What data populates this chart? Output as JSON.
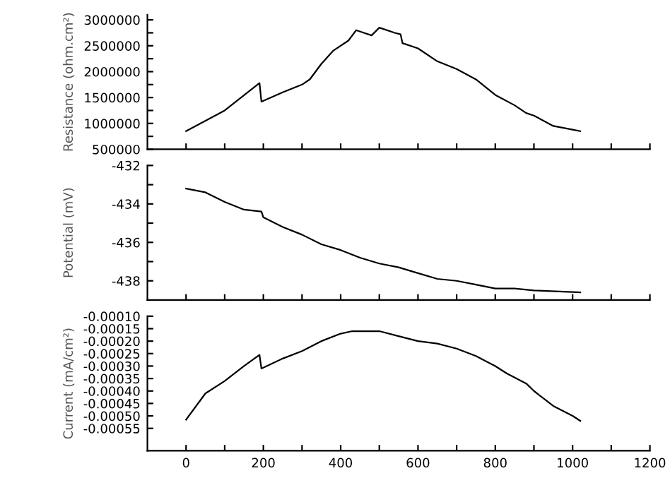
{
  "chart_data": [
    {
      "type": "line",
      "ylabel": "Resistance (ohm.cm²)",
      "tick_labels": "y",
      "grid": false,
      "legend": false,
      "x": [
        0,
        100,
        190,
        195,
        250,
        300,
        320,
        350,
        380,
        420,
        440,
        460,
        480,
        500,
        540,
        555,
        560,
        600,
        650,
        700,
        750,
        800,
        850,
        880,
        900,
        950,
        1000,
        1020
      ],
      "series": [
        {
          "color": "#000000",
          "values": [
            850000,
            1250000,
            1780000,
            1420000,
            1600000,
            1750000,
            1850000,
            2150000,
            2400000,
            2600000,
            2800000,
            2750000,
            2700000,
            2850000,
            2750000,
            2720000,
            2550000,
            2450000,
            2200000,
            2050000,
            1850000,
            1550000,
            1350000,
            1200000,
            1150000,
            950000,
            880000,
            850000
          ]
        }
      ],
      "xlim": [
        -100,
        1200
      ],
      "xticks": [
        0,
        {
          "value": 100,
          "label": null
        },
        200,
        {
          "value": 300,
          "label": null
        },
        400,
        {
          "value": 500,
          "label": null
        },
        600,
        {
          "value": 700,
          "label": null
        },
        800,
        {
          "value": 900,
          "label": null
        },
        1000,
        {
          "value": 1100,
          "label": null
        },
        1200
      ],
      "ylim": [
        500000,
        3100000
      ],
      "yticks": [
        500000,
        {
          "value": 750000,
          "label": null
        },
        1000000,
        {
          "value": 1250000,
          "label": null
        },
        1500000,
        {
          "value": 1750000,
          "label": null
        },
        2000000,
        {
          "value": 2250000,
          "label": null
        },
        2500000,
        {
          "value": 2750000,
          "label": null
        },
        3000000
      ]
    },
    {
      "type": "line",
      "ylabel": "Potential (mV)",
      "tick_labels": "y",
      "grid": false,
      "legend": false,
      "x": [
        0,
        50,
        100,
        150,
        195,
        200,
        250,
        300,
        350,
        400,
        450,
        500,
        550,
        600,
        650,
        700,
        750,
        800,
        850,
        900,
        1020
      ],
      "series": [
        {
          "color": "#000000",
          "values": [
            -433.2,
            -433.4,
            -433.9,
            -434.3,
            -434.4,
            -434.7,
            -435.2,
            -435.6,
            -436.1,
            -436.4,
            -436.8,
            -437.1,
            -437.3,
            -437.6,
            -437.9,
            -438.0,
            -438.2,
            -438.4,
            -438.4,
            -438.5,
            -438.6
          ]
        }
      ],
      "xlim": [
        -100,
        1200
      ],
      "xticks": [
        0,
        {
          "value": 100,
          "label": null
        },
        200,
        {
          "value": 300,
          "label": null
        },
        400,
        {
          "value": 500,
          "label": null
        },
        600,
        {
          "value": 700,
          "label": null
        },
        800,
        {
          "value": 900,
          "label": null
        },
        1000,
        {
          "value": 1100,
          "label": null
        },
        1200
      ],
      "ylim": [
        -439,
        -432
      ],
      "yticks": [
        -432,
        {
          "value": -433,
          "label": null
        },
        -434,
        {
          "value": -435,
          "label": null
        },
        -436,
        {
          "value": -437,
          "label": null
        },
        -438
      ]
    },
    {
      "type": "line",
      "ylabel": "Current (mA/cm²)",
      "grid": false,
      "legend": false,
      "x": [
        0,
        50,
        100,
        150,
        190,
        195,
        250,
        300,
        350,
        400,
        430,
        500,
        550,
        600,
        650,
        700,
        750,
        800,
        830,
        880,
        900,
        950,
        1000,
        1020
      ],
      "series": [
        {
          "color": "#000000",
          "values": [
            -0.000515,
            -0.00041,
            -0.00036,
            -0.0003,
            -0.000255,
            -0.00031,
            -0.00027,
            -0.00024,
            -0.0002,
            -0.00017,
            -0.00016,
            -0.00016,
            -0.00018,
            -0.0002,
            -0.00021,
            -0.00023,
            -0.00026,
            -0.0003,
            -0.00033,
            -0.00037,
            -0.0004,
            -0.00046,
            -0.0005,
            -0.00052
          ]
        }
      ],
      "xlim": [
        -100,
        1200
      ],
      "xticks": [
        0,
        {
          "value": 100,
          "label": null
        },
        200,
        {
          "value": 300,
          "label": null
        },
        400,
        {
          "value": 500,
          "label": null
        },
        600,
        {
          "value": 700,
          "label": null
        },
        800,
        {
          "value": 900,
          "label": null
        },
        1000,
        {
          "value": 1100,
          "label": null
        },
        1200
      ],
      "ylim": [
        -0.00064,
        -0.0001
      ],
      "yticks": [
        {
          "value": -0.0001,
          "label": "-0.00010"
        },
        {
          "value": -0.00015,
          "label": "-0.00015"
        },
        {
          "value": -0.0002,
          "label": "-0.00020"
        },
        {
          "value": -0.00025,
          "label": "-0.00025"
        },
        {
          "value": -0.0003,
          "label": "-0.00030"
        },
        {
          "value": -0.00035,
          "label": "-0.00035"
        },
        {
          "value": -0.0004,
          "label": "-0.00040"
        },
        {
          "value": -0.00045,
          "label": "-0.00045"
        },
        {
          "value": -0.0005,
          "label": "-0.00050"
        },
        {
          "value": -0.00055,
          "label": "-0.00055"
        }
      ]
    }
  ]
}
